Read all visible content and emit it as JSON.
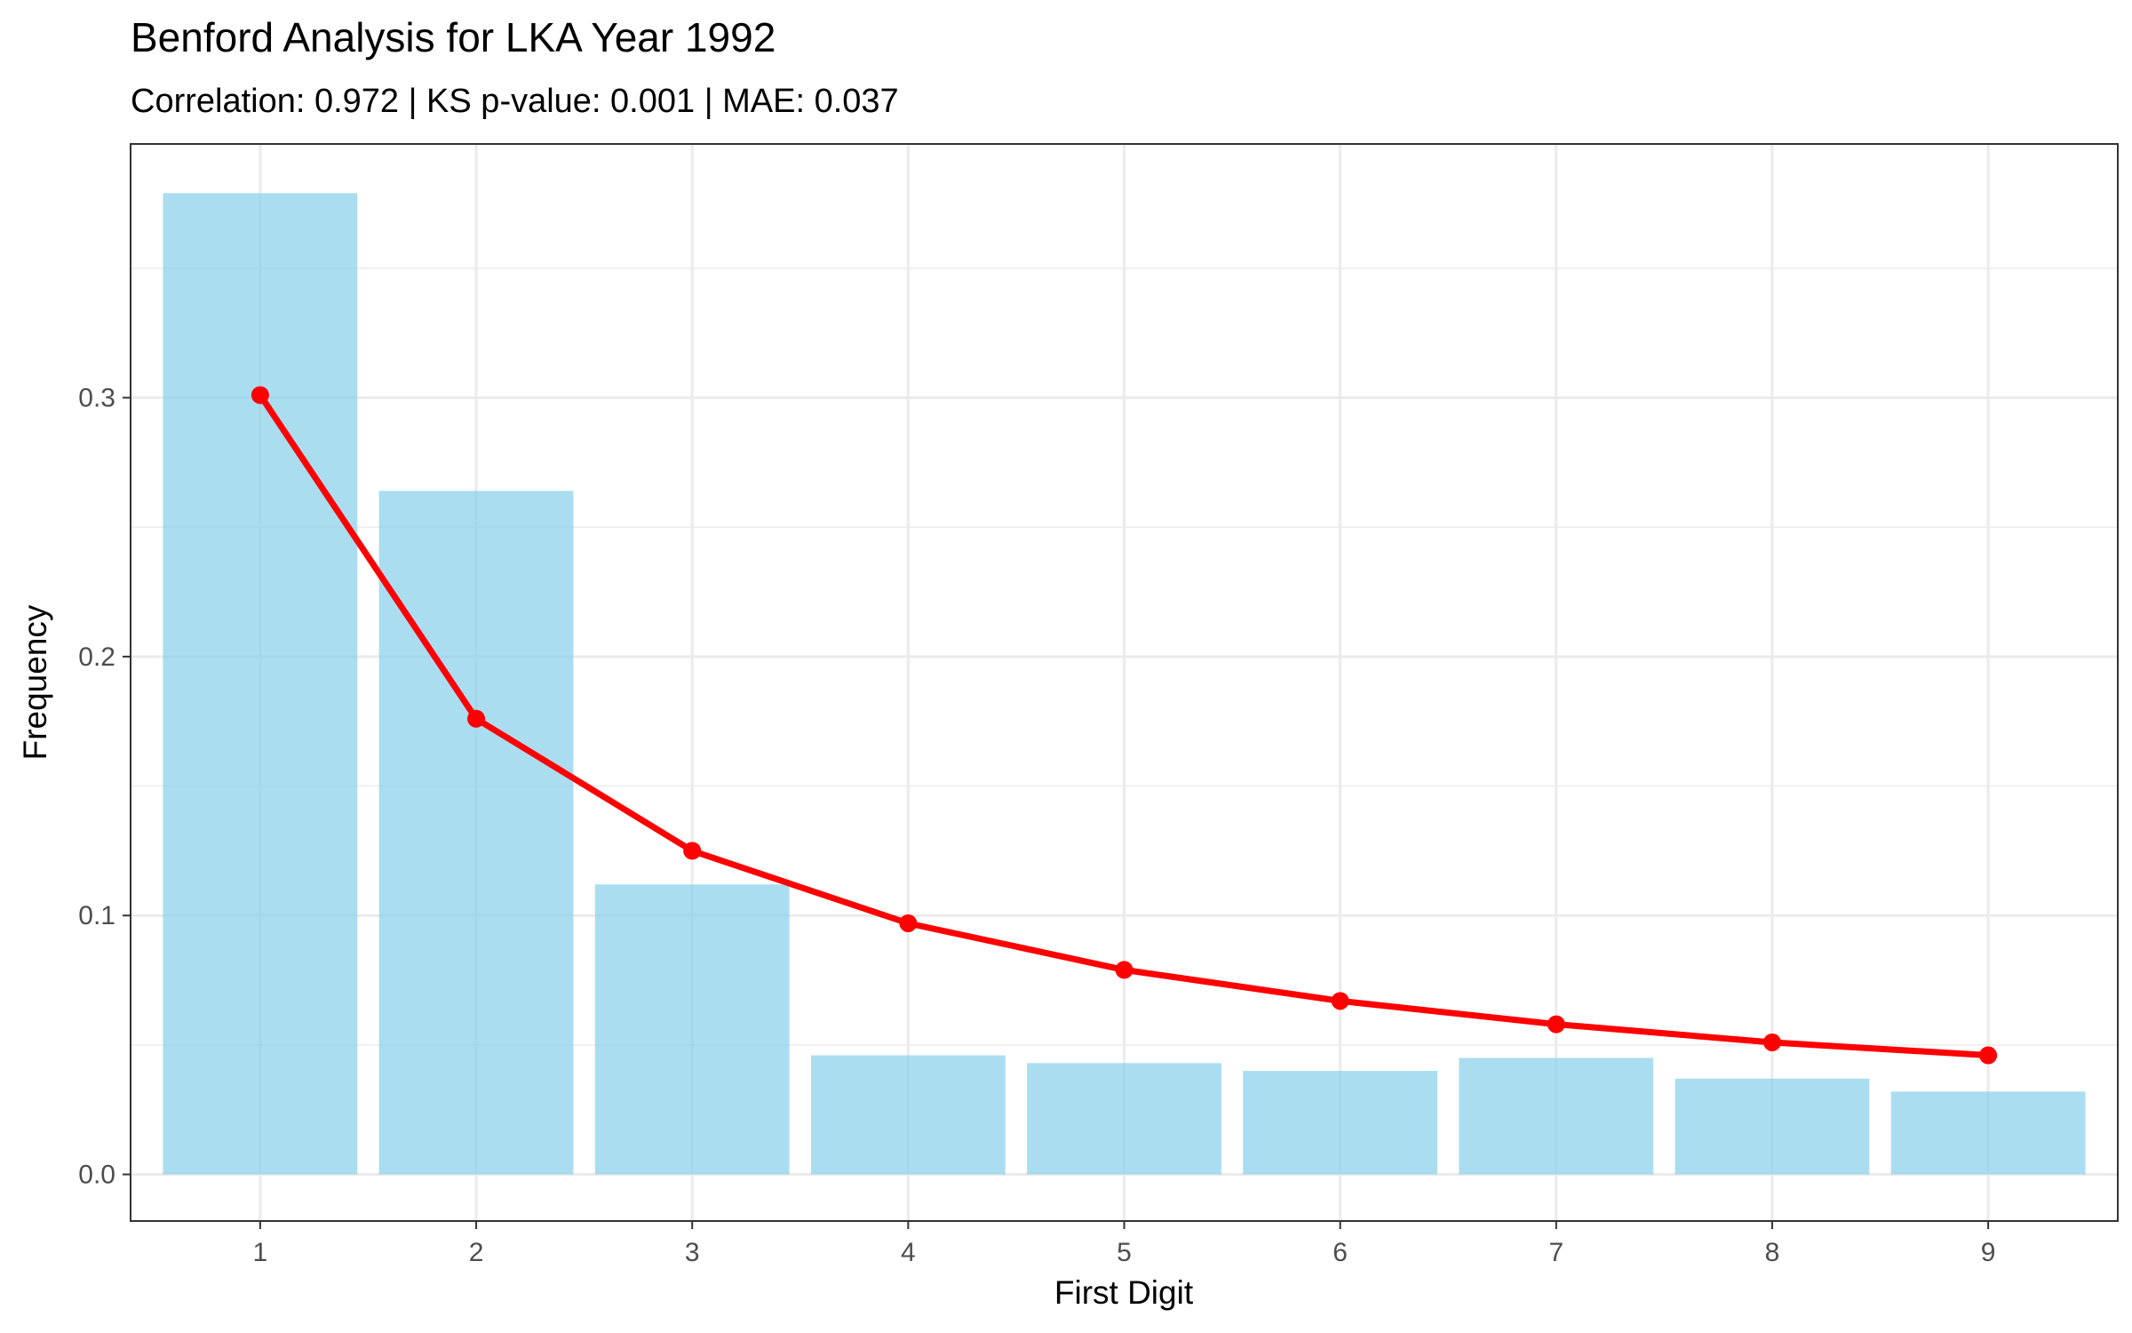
{
  "chart_data": {
    "type": "bar",
    "title": "Benford Analysis for LKA Year 1992",
    "subtitle": "Correlation: 0.972 | KS p-value: 0.001 | MAE: 0.037",
    "xlabel": "First Digit",
    "ylabel": "Frequency",
    "categories": [
      "1",
      "2",
      "3",
      "4",
      "5",
      "6",
      "7",
      "8",
      "9"
    ],
    "ylim": [
      -0.018,
      0.398
    ],
    "xlim": [
      0.4,
      9.6
    ],
    "yticks": [
      0.0,
      0.1,
      0.2,
      0.3
    ],
    "ytick_labels": [
      "0.0",
      "0.1",
      "0.2",
      "0.3"
    ],
    "grid": true,
    "series": [
      {
        "kind": "bar",
        "color": "#87CEEB",
        "values": [
          0.379,
          0.264,
          0.112,
          0.046,
          0.043,
          0.04,
          0.045,
          0.037,
          0.032
        ]
      },
      {
        "kind": "line",
        "color": "#FF0000",
        "values": [
          0.301,
          0.176,
          0.125,
          0.097,
          0.079,
          0.067,
          0.058,
          0.051,
          0.046
        ]
      }
    ]
  }
}
